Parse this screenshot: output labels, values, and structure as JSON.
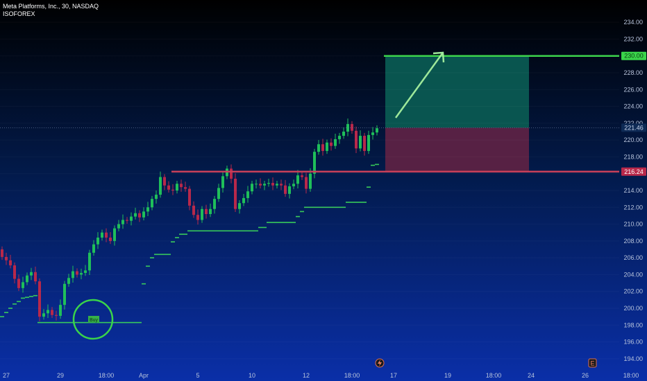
{
  "header": {
    "symbol_line": "Meta Platforms, Inc., 30, NASDAQ",
    "author": "ISOFOREX"
  },
  "colors": {
    "up": "#1fbf5a",
    "down": "#b8284a",
    "trailing_stop": "#3cd65a",
    "target_line": "#3ad44a",
    "resistance_line": "#c8405a",
    "profit_zone": "#0a5a52",
    "loss_zone": "#5c2244",
    "arrow": "#9ee89a",
    "buy_circle": "#3ad44a"
  },
  "chart_data": {
    "type": "candlestick",
    "title": "",
    "xlabel": "",
    "ylabel": "",
    "ylim": [
      193,
      235
    ],
    "y_ticks": [
      "234.00",
      "232.00",
      "230.00",
      "228.00",
      "226.00",
      "224.00",
      "222.00",
      "220.00",
      "218.00",
      "216.00",
      "214.00",
      "212.00",
      "210.00",
      "208.00",
      "206.00",
      "204.00",
      "202.00",
      "200.00",
      "198.00",
      "196.00",
      "194.00"
    ],
    "x_ticks": [
      {
        "label": "27",
        "bar": 1
      },
      {
        "label": "29",
        "bar": 14
      },
      {
        "label": "18:00",
        "bar": 25
      },
      {
        "label": "Apr",
        "bar": 34
      },
      {
        "label": "5",
        "bar": 47
      },
      {
        "label": "10",
        "bar": 60
      },
      {
        "label": "12",
        "bar": 73
      },
      {
        "label": "18:00",
        "bar": 84
      },
      {
        "label": "17",
        "bar": 94
      },
      {
        "label": "19",
        "bar": 107
      },
      {
        "label": "18:00",
        "bar": 118
      },
      {
        "label": "24",
        "bar": 127
      },
      {
        "label": "26",
        "bar": 140
      },
      {
        "label": "18:00",
        "bar": 151
      }
    ],
    "candles_close": [
      206.1,
      205.7,
      205.1,
      203.5,
      202.4,
      203.1,
      203.9,
      204.3,
      203.2,
      199.0,
      199.4,
      199.8,
      199.2,
      199.1,
      200.4,
      202.9,
      203.6,
      204.4,
      204.0,
      204.2,
      204.5,
      206.6,
      207.6,
      208.4,
      209.0,
      208.4,
      208.0,
      209.5,
      210.0,
      210.5,
      210.4,
      210.9,
      211.3,
      210.8,
      211.5,
      212.0,
      213.0,
      213.5,
      215.6,
      214.6,
      214.1,
      214.0,
      214.8,
      214.4,
      214.2,
      212.2,
      211.1,
      210.5,
      211.8,
      211.2,
      211.8,
      213.0,
      214.3,
      215.7,
      216.6,
      215.4,
      211.8,
      212.5,
      213.1,
      213.9,
      214.8,
      214.8,
      214.6,
      214.8,
      214.9,
      214.6,
      214.8,
      214.6,
      213.6,
      214.5,
      214.8,
      215.8,
      215.6,
      214.2,
      216.0,
      218.6,
      219.5,
      218.7,
      219.7,
      219.3,
      220.1,
      220.5,
      221.0,
      221.9,
      221.1,
      219.0,
      220.5,
      218.7,
      220.6,
      220.9,
      221.4
    ],
    "trailing_stop": [
      199.0,
      199.5,
      200.0,
      200.5,
      200.8,
      201.2,
      201.3,
      201.4,
      201.5,
      null,
      null,
      null,
      null,
      null,
      null,
      null,
      null,
      null,
      null,
      null,
      null,
      null,
      null,
      null,
      null,
      null,
      null,
      null,
      null,
      null,
      null,
      null,
      null,
      null,
      null,
      null,
      null,
      null,
      null,
      null,
      null,
      null,
      null,
      null,
      null,
      null,
      null,
      null,
      null,
      null,
      null,
      null,
      null,
      null,
      null,
      null,
      null,
      null,
      null,
      null,
      null,
      null,
      null,
      null,
      null,
      null,
      null,
      null,
      null,
      null,
      null,
      null,
      null,
      null,
      null,
      null,
      null,
      null,
      null,
      null,
      null,
      null,
      null,
      null,
      null,
      null,
      null,
      null,
      null,
      null,
      null
    ],
    "buy_label": "Buy",
    "levels": [
      {
        "name": "target",
        "value": 230.0,
        "label": "230.00"
      },
      {
        "name": "current",
        "value": 221.46,
        "label": "221.46"
      },
      {
        "name": "support",
        "value": 216.24,
        "label": "216.24"
      }
    ]
  },
  "toolbar": {
    "lightning_icon": "lightning-icon",
    "earnings_badge": "E"
  }
}
